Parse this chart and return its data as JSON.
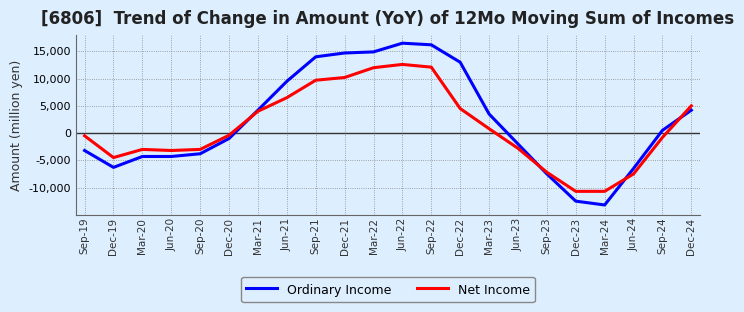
{
  "title": "[6806]  Trend of Change in Amount (YoY) of 12Mo Moving Sum of Incomes",
  "ylabel": "Amount (million yen)",
  "x_labels": [
    "Sep-19",
    "Dec-19",
    "Mar-20",
    "Jun-20",
    "Sep-20",
    "Dec-20",
    "Mar-21",
    "Jun-21",
    "Sep-21",
    "Dec-21",
    "Mar-22",
    "Jun-22",
    "Sep-22",
    "Dec-22",
    "Mar-23",
    "Jun-23",
    "Sep-23",
    "Dec-23",
    "Mar-24",
    "Jun-24",
    "Sep-24",
    "Dec-24"
  ],
  "ordinary_income": [
    -3200,
    -6300,
    -4300,
    -4300,
    -3800,
    -1000,
    4200,
    9500,
    14000,
    14700,
    14900,
    16500,
    16200,
    13000,
    3500,
    -2000,
    -7500,
    -12500,
    -13200,
    -6500,
    500,
    4200
  ],
  "net_income": [
    -500,
    -4500,
    -3000,
    -3200,
    -3000,
    -400,
    4000,
    6500,
    9700,
    10200,
    12000,
    12600,
    12100,
    4500,
    800,
    -2800,
    -7200,
    -10700,
    -10700,
    -7500,
    -800,
    5000
  ],
  "ordinary_income_color": "#0000FF",
  "net_income_color": "#FF0000",
  "background_color": "#DDEEFF",
  "plot_bg_color": "#DDEEFF",
  "grid_color": "#888888",
  "ylim": [
    -15000,
    18000
  ],
  "yticks": [
    -10000,
    -5000,
    0,
    5000,
    10000,
    15000
  ],
  "legend_labels": [
    "Ordinary Income",
    "Net Income"
  ],
  "line_width": 2.2,
  "title_fontsize": 12,
  "ylabel_fontsize": 9,
  "tick_fontsize": 8,
  "xtick_fontsize": 7.5
}
